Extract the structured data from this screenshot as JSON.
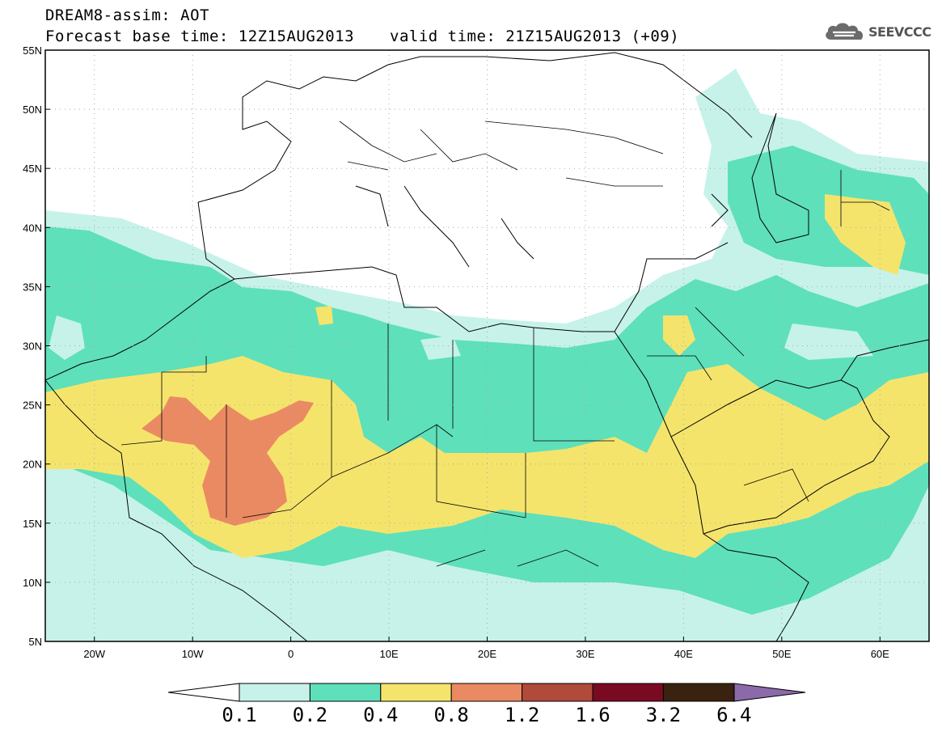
{
  "header": {
    "line1": "DREAM8-assim: AOT",
    "line2": "Forecast base time: 12Z15AUG2013",
    "valid": "valid time: 21Z15AUG2013 (+09)",
    "logo_text": "SEEVCCC",
    "logo_icon": "cloud-icon"
  },
  "axes": {
    "lat_labels": [
      "55N",
      "50N",
      "45N",
      "40N",
      "35N",
      "30N",
      "25N",
      "20N",
      "15N",
      "10N",
      "5N"
    ],
    "lon_labels": [
      "20W",
      "10W",
      "0",
      "10E",
      "20E",
      "30E",
      "40E",
      "50E",
      "60E"
    ]
  },
  "colorbar": {
    "labels": [
      "0.1",
      "0.2",
      "0.4",
      "0.8",
      "1.2",
      "1.6",
      "3.2",
      "6.4"
    ],
    "colors": [
      "#c6f2ea",
      "#5ee0bb",
      "#f5e46c",
      "#ea8a62",
      "#b04a3a",
      "#7a0a22",
      "#3a2210",
      "#8a6aa8"
    ]
  },
  "chart_data": {
    "type": "heatmap",
    "variable": "AOT",
    "xlim": [
      -25,
      65
    ],
    "ylim": [
      5,
      55
    ],
    "grid": true,
    "levels": [
      0.1,
      0.2,
      0.4,
      0.8,
      1.2,
      1.6,
      3.2,
      6.4
    ]
  }
}
